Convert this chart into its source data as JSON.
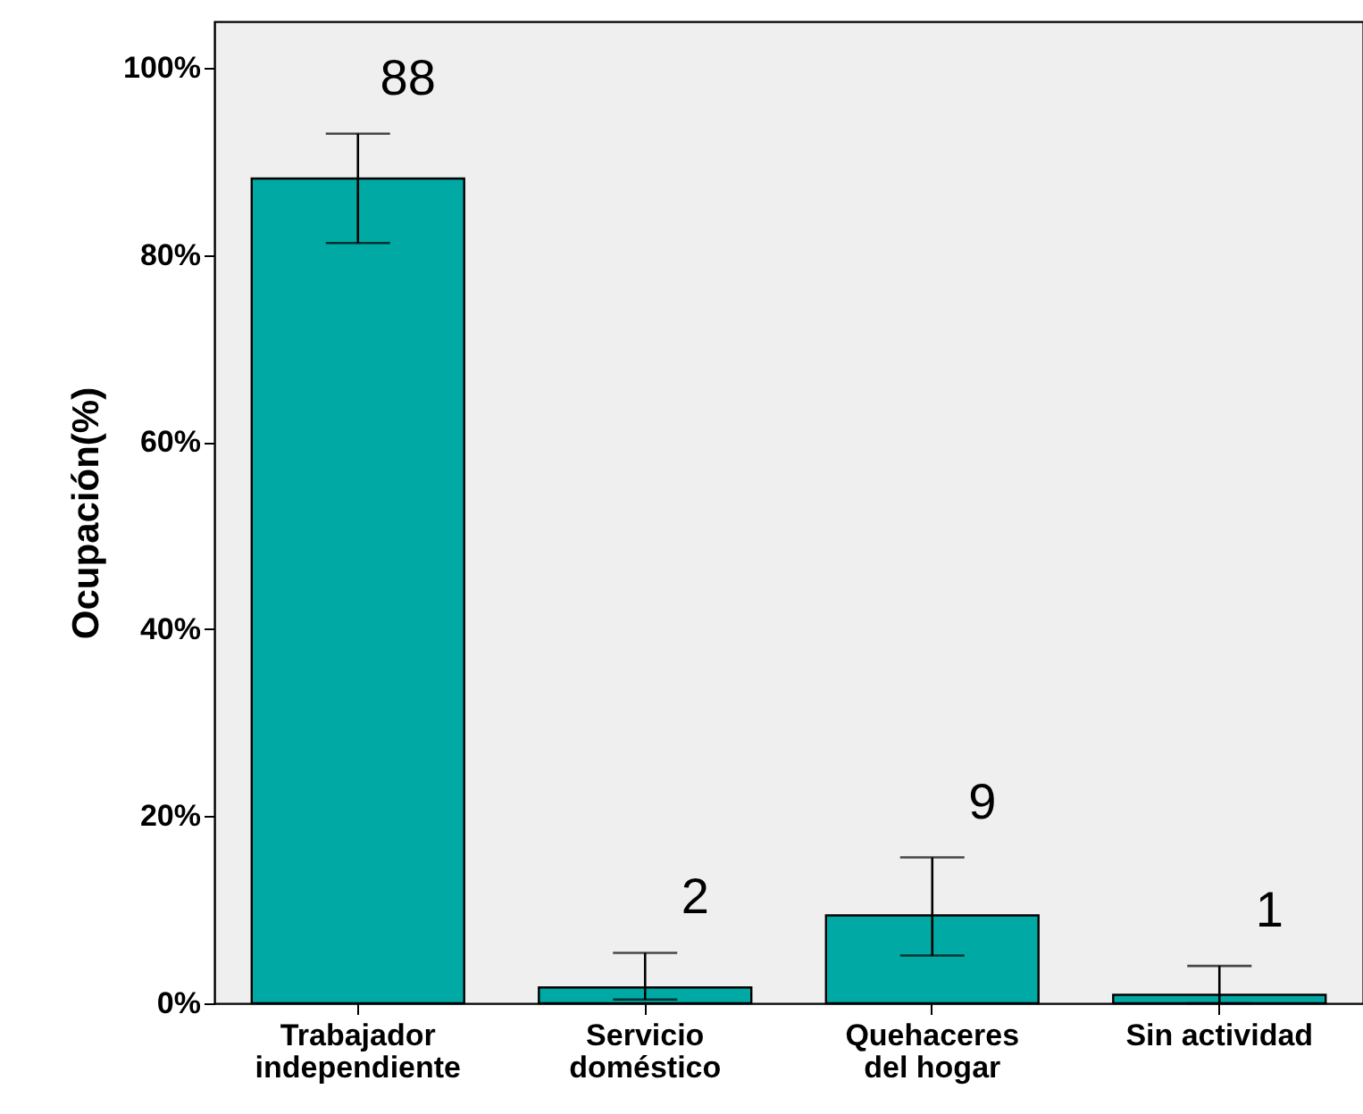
{
  "chart_data": {
    "type": "bar",
    "ylabel": "Ocupación(%)",
    "categories": [
      "Trabajador independiente",
      "Servicio doméstico",
      "Quehaceres del hogar",
      "Sin actividad"
    ],
    "values": [
      88.2,
      1.7,
      9.4,
      0.9
    ],
    "value_labels": [
      "88",
      "2",
      "9",
      "1"
    ],
    "errors": [
      [
        81.3,
        93.0
      ],
      [
        0.4,
        5.4
      ],
      [
        5.1,
        15.6
      ],
      [
        0,
        4.0
      ]
    ],
    "color": "#00a9a4",
    "ylim": [
      0,
      105
    ],
    "yticks": [
      {
        "value": 0,
        "label": "0%"
      },
      {
        "value": 20,
        "label": "20%"
      },
      {
        "value": 40,
        "label": "40%"
      },
      {
        "value": 60,
        "label": "60%"
      },
      {
        "value": 80,
        "label": "80%"
      },
      {
        "value": 100,
        "label": "100%"
      }
    ],
    "grid": false
  }
}
